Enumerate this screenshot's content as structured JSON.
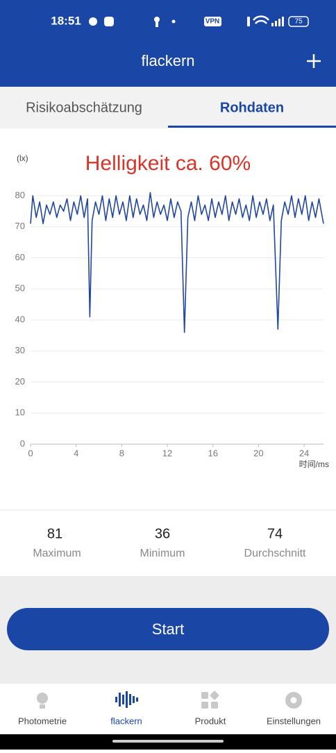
{
  "status_bar": {
    "time": "18:51",
    "vpn": "VPN",
    "battery": "75"
  },
  "header": {
    "title": "flackern"
  },
  "tabs": [
    "Risikoabschätzung",
    "Rohdaten"
  ],
  "chart_data": {
    "type": "line",
    "title": "Helligkeit ca. 60%",
    "y_label": "(lx)",
    "x_label": "时间/ms",
    "color": "#1f46a0",
    "grid": true,
    "x": [
      0,
      0.2,
      0.5,
      0.8,
      1.1,
      1.4,
      1.7,
      2.0,
      2.3,
      2.6,
      2.9,
      3.2,
      3.5,
      3.8,
      4.1,
      4.4,
      4.7,
      5.0,
      5.2,
      5.4,
      5.7,
      6.0,
      6.3,
      6.6,
      6.9,
      7.2,
      7.5,
      7.8,
      8.1,
      8.4,
      8.7,
      9.0,
      9.3,
      9.6,
      9.9,
      10.2,
      10.5,
      10.8,
      11.1,
      11.4,
      11.7,
      12.0,
      12.3,
      12.6,
      12.9,
      13.2,
      13.5,
      13.8,
      14.1,
      14.4,
      14.7,
      15.0,
      15.3,
      15.6,
      15.9,
      16.2,
      16.5,
      16.8,
      17.1,
      17.4,
      17.7,
      18.0,
      18.3,
      18.6,
      18.9,
      19.2,
      19.5,
      19.8,
      20.1,
      20.4,
      20.7,
      21.0,
      21.3,
      21.7,
      22.0,
      22.3,
      22.6,
      22.9,
      23.2,
      23.5,
      23.8,
      24.1,
      24.4,
      24.7,
      25.0,
      25.3,
      25.7
    ],
    "values": [
      71,
      80,
      73,
      78,
      71,
      77,
      74,
      78,
      73,
      77,
      75,
      79,
      72,
      78,
      74,
      80,
      73,
      79,
      41,
      72,
      78,
      74,
      80,
      72,
      79,
      73,
      80,
      74,
      78,
      72,
      80,
      73,
      79,
      74,
      77,
      72,
      81,
      73,
      78,
      74,
      77,
      72,
      79,
      73,
      78,
      75,
      36,
      73,
      78,
      72,
      80,
      74,
      77,
      72,
      79,
      73,
      78,
      74,
      80,
      72,
      78,
      74,
      79,
      73,
      77,
      72,
      80,
      73,
      78,
      74,
      79,
      72,
      77,
      37,
      72,
      78,
      74,
      80,
      73,
      79,
      74,
      80,
      72,
      78,
      73,
      79,
      71
    ],
    "xlim": [
      0,
      25.7
    ],
    "ylim": [
      0,
      80
    ],
    "xticks": [
      0,
      4,
      8,
      12,
      16,
      20,
      24
    ],
    "yticks": [
      0,
      10,
      20,
      30,
      40,
      50,
      60,
      70,
      80
    ]
  },
  "stats": [
    {
      "value": 81,
      "label": "Maximum"
    },
    {
      "value": 36,
      "label": "Minimum"
    },
    {
      "value": 74,
      "label": "Durchschnitt"
    }
  ],
  "button": "Start",
  "nav": [
    "Photometrie",
    "flackern",
    "Produkt",
    "Einstellungen"
  ]
}
